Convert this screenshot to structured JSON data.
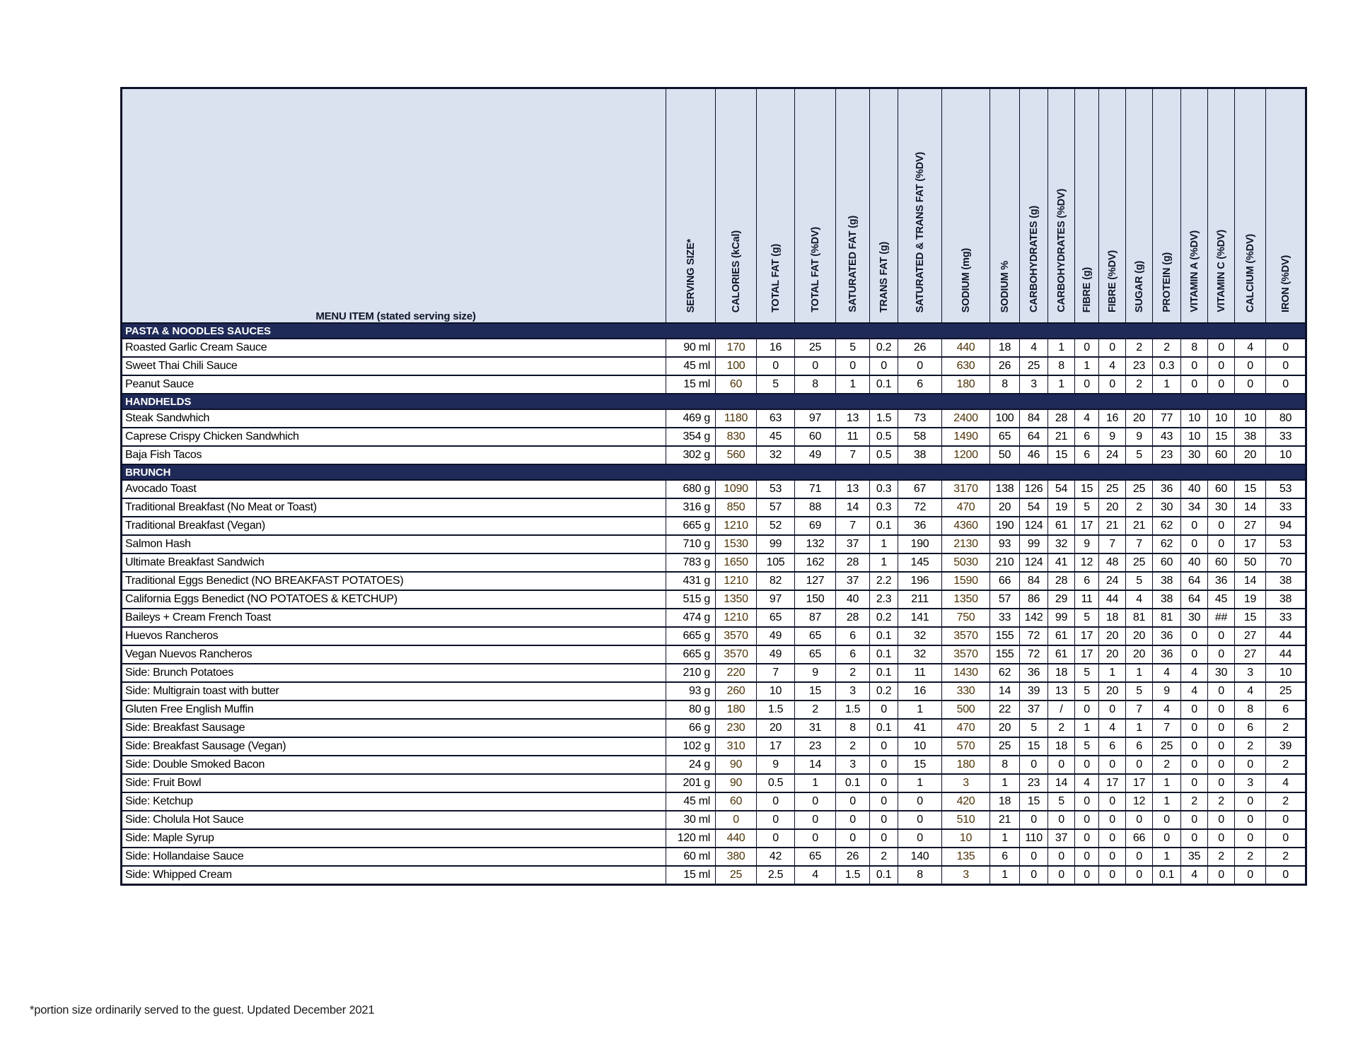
{
  "table": {
    "menu_header": "MENU ITEM (stated serving size)",
    "columns": [
      {
        "label": "SERVING SIZE*",
        "highlight": false
      },
      {
        "label": "CALORIES (kCal)",
        "highlight": true
      },
      {
        "label": "TOTAL FAT (g)",
        "highlight": false
      },
      {
        "label": "TOTAL FAT (%DV)",
        "highlight": false
      },
      {
        "label": "SATURATED FAT (g)",
        "highlight": false
      },
      {
        "label": "TRANS FAT (g)",
        "highlight": false
      },
      {
        "label": "SATURATED & TRANS FAT (%DV)",
        "highlight": false
      },
      {
        "label": "SODIUM (mg)",
        "highlight": true
      },
      {
        "label": "SODIUM %",
        "highlight": false
      },
      {
        "label": "CARBOHYDRATES (g)",
        "highlight": false
      },
      {
        "label": "CARBOHYDRATES (%DV)",
        "highlight": false
      },
      {
        "label": "FIBRE (g)",
        "highlight": false
      },
      {
        "label": "FIBRE (%DV)",
        "highlight": false
      },
      {
        "label": "SUGAR (g)",
        "highlight": false
      },
      {
        "label": "PROTEIN (g)",
        "highlight": false
      },
      {
        "label": "VITAMIN A (%DV)",
        "highlight": false
      },
      {
        "label": "VITAMIN C (%DV)",
        "highlight": false
      },
      {
        "label": "CALCIUM (%DV)",
        "highlight": false
      },
      {
        "label": "IRON (%DV)",
        "highlight": false
      }
    ],
    "sections": [
      {
        "title": "PASTA & NOODLES SAUCES",
        "rows": [
          {
            "name": "Roasted Garlic Cream Sauce",
            "serving": "90 ml",
            "values": [
              "170",
              "16",
              "25",
              "5",
              "0.2",
              "26",
              "440",
              "18",
              "4",
              "1",
              "0",
              "0",
              "2",
              "2",
              "8",
              "0",
              "4",
              "0"
            ]
          },
          {
            "name": "Sweet Thai Chili Sauce",
            "serving": "45 ml",
            "values": [
              "100",
              "0",
              "0",
              "0",
              "0",
              "0",
              "630",
              "26",
              "25",
              "8",
              "1",
              "4",
              "23",
              "0.3",
              "0",
              "0",
              "0",
              "0"
            ]
          },
          {
            "name": "Peanut Sauce",
            "serving": "15 ml",
            "values": [
              "60",
              "5",
              "8",
              "1",
              "0.1",
              "6",
              "180",
              "8",
              "3",
              "1",
              "0",
              "0",
              "2",
              "1",
              "0",
              "0",
              "0",
              "0"
            ]
          }
        ]
      },
      {
        "title": "HANDHELDS",
        "rows": [
          {
            "name": "Steak Sandwhich",
            "serving": "469 g",
            "values": [
              "1180",
              "63",
              "97",
              "13",
              "1.5",
              "73",
              "2400",
              "100",
              "84",
              "28",
              "4",
              "16",
              "20",
              "77",
              "10",
              "10",
              "10",
              "80"
            ]
          },
          {
            "name": "Caprese Crispy Chicken Sandwhich",
            "serving": "354 g",
            "values": [
              "830",
              "45",
              "60",
              "11",
              "0.5",
              "58",
              "1490",
              "65",
              "64",
              "21",
              "6",
              "9",
              "9",
              "43",
              "10",
              "15",
              "38",
              "33"
            ]
          },
          {
            "name": "Baja Fish Tacos",
            "serving": "302 g",
            "values": [
              "560",
              "32",
              "49",
              "7",
              "0.5",
              "38",
              "1200",
              "50",
              "46",
              "15",
              "6",
              "24",
              "5",
              "23",
              "30",
              "60",
              "20",
              "10"
            ]
          }
        ]
      },
      {
        "title": "BRUNCH",
        "rows": [
          {
            "name": "Avocado Toast",
            "serving": "680 g",
            "values": [
              "1090",
              "53",
              "71",
              "13",
              "0.3",
              "67",
              "3170",
              "138",
              "126",
              "54",
              "15",
              "25",
              "25",
              "36",
              "40",
              "60",
              "15",
              "53"
            ]
          },
          {
            "name": "Traditional Breakfast (No Meat or Toast)",
            "serving": "316 g",
            "values": [
              "850",
              "57",
              "88",
              "14",
              "0.3",
              "72",
              "470",
              "20",
              "54",
              "19",
              "5",
              "20",
              "2",
              "30",
              "34",
              "30",
              "14",
              "33"
            ]
          },
          {
            "name": "Traditional Breakfast (Vegan)",
            "serving": "665 g",
            "values": [
              "1210",
              "52",
              "69",
              "7",
              "0.1",
              "36",
              "4360",
              "190",
              "124",
              "61",
              "17",
              "21",
              "21",
              "62",
              "0",
              "0",
              "27",
              "94"
            ]
          },
          {
            "name": "Salmon Hash",
            "serving": "710 g",
            "values": [
              "1530",
              "99",
              "132",
              "37",
              "1",
              "190",
              "2130",
              "93",
              "99",
              "32",
              "9",
              "7",
              "7",
              "62",
              "0",
              "0",
              "17",
              "53"
            ]
          },
          {
            "name": "Ultimate Breakfast Sandwich",
            "serving": "783 g",
            "values": [
              "1650",
              "105",
              "162",
              "28",
              "1",
              "145",
              "5030",
              "210",
              "124",
              "41",
              "12",
              "48",
              "25",
              "60",
              "40",
              "60",
              "50",
              "70"
            ]
          },
          {
            "name": "Traditional Eggs Benedict   (NO BREAKFAST POTATOES)",
            "serving": "431 g",
            "values": [
              "1210",
              "82",
              "127",
              "37",
              "2.2",
              "196",
              "1590",
              "66",
              "84",
              "28",
              "6",
              "24",
              "5",
              "38",
              "64",
              "36",
              "14",
              "38"
            ]
          },
          {
            "name": "California Eggs Benedict  (NO  POTATOES & KETCHUP)",
            "serving": "515 g",
            "values": [
              "1350",
              "97",
              "150",
              "40",
              "2.3",
              "211",
              "1350",
              "57",
              "86",
              "29",
              "11",
              "44",
              "4",
              "38",
              "64",
              "45",
              "19",
              "38"
            ]
          },
          {
            "name": "Baileys + Cream French Toast",
            "serving": "474 g",
            "values": [
              "1210",
              "65",
              "87",
              "28",
              "0.2",
              "141",
              "750",
              "33",
              "142",
              "99",
              "5",
              "18",
              "81",
              "81",
              "30",
              "##",
              "15",
              "33"
            ]
          },
          {
            "name": "Huevos Rancheros",
            "serving": "665 g",
            "values": [
              "3570",
              "49",
              "65",
              "6",
              "0.1",
              "32",
              "3570",
              "155",
              "72",
              "61",
              "17",
              "20",
              "20",
              "36",
              "0",
              "0",
              "27",
              "44"
            ]
          },
          {
            "name": "Vegan Nuevos Rancheros",
            "serving": "665 g",
            "values": [
              "3570",
              "49",
              "65",
              "6",
              "0.1",
              "32",
              "3570",
              "155",
              "72",
              "61",
              "17",
              "20",
              "20",
              "36",
              "0",
              "0",
              "27",
              "44"
            ]
          },
          {
            "name": "Side: Brunch Potatoes",
            "serving": "210 g",
            "values": [
              "220",
              "7",
              "9",
              "2",
              "0.1",
              "11",
              "1430",
              "62",
              "36",
              "18",
              "5",
              "1",
              "1",
              "4",
              "4",
              "30",
              "3",
              "10"
            ]
          },
          {
            "name": "Side: Multigrain toast with butter",
            "serving": "93 g",
            "values": [
              "260",
              "10",
              "15",
              "3",
              "0.2",
              "16",
              "330",
              "14",
              "39",
              "13",
              "5",
              "20",
              "5",
              "9",
              "4",
              "0",
              "4",
              "25"
            ]
          },
          {
            "name": "Gluten Free English Muffin",
            "serving": "80 g",
            "values": [
              "180",
              "1.5",
              "2",
              "1.5",
              "0",
              "1",
              "500",
              "22",
              "37",
              "/",
              "0",
              "0",
              "7",
              "4",
              "0",
              "0",
              "8",
              "6"
            ]
          },
          {
            "name": "Side: Breakfast Sausage",
            "serving": "66 g",
            "values": [
              "230",
              "20",
              "31",
              "8",
              "0.1",
              "41",
              "470",
              "20",
              "5",
              "2",
              "1",
              "4",
              "1",
              "7",
              "0",
              "0",
              "6",
              "2"
            ]
          },
          {
            "name": "Side: Breakfast Sausage (Vegan)",
            "serving": "102 g",
            "values": [
              "310",
              "17",
              "23",
              "2",
              "0",
              "10",
              "570",
              "25",
              "15",
              "18",
              "5",
              "6",
              "6",
              "25",
              "0",
              "0",
              "2",
              "39"
            ]
          },
          {
            "name": "Side: Double Smoked Bacon",
            "serving": "24 g",
            "values": [
              "90",
              "9",
              "14",
              "3",
              "0",
              "15",
              "180",
              "8",
              "0",
              "0",
              "0",
              "0",
              "0",
              "2",
              "0",
              "0",
              "0",
              "2"
            ]
          },
          {
            "name": "Side: Fruit Bowl",
            "serving": "201 g",
            "values": [
              "90",
              "0.5",
              "1",
              "0.1",
              "0",
              "1",
              "3",
              "1",
              "23",
              "14",
              "4",
              "17",
              "17",
              "1",
              "0",
              "0",
              "3",
              "4"
            ]
          },
          {
            "name": "Side: Ketchup",
            "serving": "45 ml",
            "values": [
              "60",
              "0",
              "0",
              "0",
              "0",
              "0",
              "420",
              "18",
              "15",
              "5",
              "0",
              "0",
              "12",
              "1",
              "2",
              "2",
              "0",
              "2"
            ]
          },
          {
            "name": "Side: Cholula Hot Sauce",
            "serving": "30 ml",
            "values": [
              "0",
              "0",
              "0",
              "0",
              "0",
              "0",
              "510",
              "21",
              "0",
              "0",
              "0",
              "0",
              "0",
              "0",
              "0",
              "0",
              "0",
              "0"
            ]
          },
          {
            "name": "Side: Maple Syrup",
            "serving": "120 ml",
            "values": [
              "440",
              "0",
              "0",
              "0",
              "0",
              "0",
              "10",
              "1",
              "110",
              "37",
              "0",
              "0",
              "66",
              "0",
              "0",
              "0",
              "0",
              "0"
            ]
          },
          {
            "name": "Side: Hollandaise Sauce",
            "serving": "60 ml",
            "values": [
              "380",
              "42",
              "65",
              "26",
              "2",
              "140",
              "135",
              "6",
              "0",
              "0",
              "0",
              "0",
              "0",
              "1",
              "35",
              "2",
              "2",
              "2"
            ]
          },
          {
            "name": "Side: Whipped Cream",
            "serving": "15 ml",
            "values": [
              "25",
              "2.5",
              "4",
              "1.5",
              "0.1",
              "8",
              "3",
              "1",
              "0",
              "0",
              "0",
              "0",
              "0",
              "0.1",
              "4",
              "0",
              "0",
              "0"
            ]
          }
        ]
      }
    ]
  },
  "footnote": "*portion size ordinarily served to the guest. Updated December 2021",
  "colors": {
    "header_bg": "#dbe2ef",
    "accent_orange": "#dda42c",
    "section_navy": "#1f2a58",
    "border": "#0c1228",
    "orange_cell_text": "#4d3307"
  }
}
